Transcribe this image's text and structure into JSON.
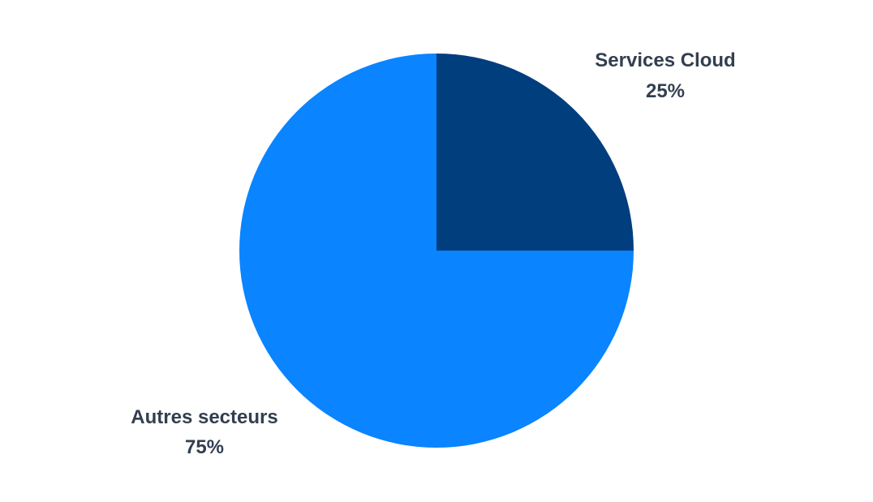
{
  "chart_data": {
    "type": "pie",
    "start_angle_deg": 0,
    "direction": "clockwise",
    "slices": [
      {
        "name": "Services Cloud",
        "value": 25,
        "value_label": "25%",
        "color": "#003E7E",
        "label_placement": "top-right"
      },
      {
        "name": "Autres secteurs",
        "value": 75,
        "value_label": "75%",
        "color": "#0A84FF",
        "label_placement": "bottom-left"
      }
    ],
    "label_color": "#333F50"
  }
}
